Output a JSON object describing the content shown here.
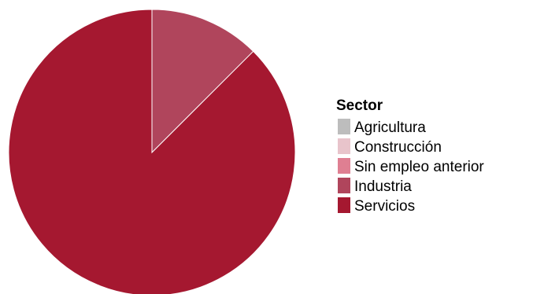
{
  "chart_data": {
    "type": "pie",
    "legend_title": "Sector",
    "legend_position": "right",
    "slices": [
      {
        "label": "Agricultura",
        "value": 0.0,
        "color": "#bdbdbd"
      },
      {
        "label": "Construcción",
        "value": 0.0,
        "color": "#e8c4cb"
      },
      {
        "label": "Sin empleo anterior",
        "value": 0.0,
        "color": "#df7f92"
      },
      {
        "label": "Industria",
        "value": 12.5,
        "color": "#b0455c"
      },
      {
        "label": "Servicios",
        "value": 87.5,
        "color": "#a51830"
      }
    ]
  }
}
